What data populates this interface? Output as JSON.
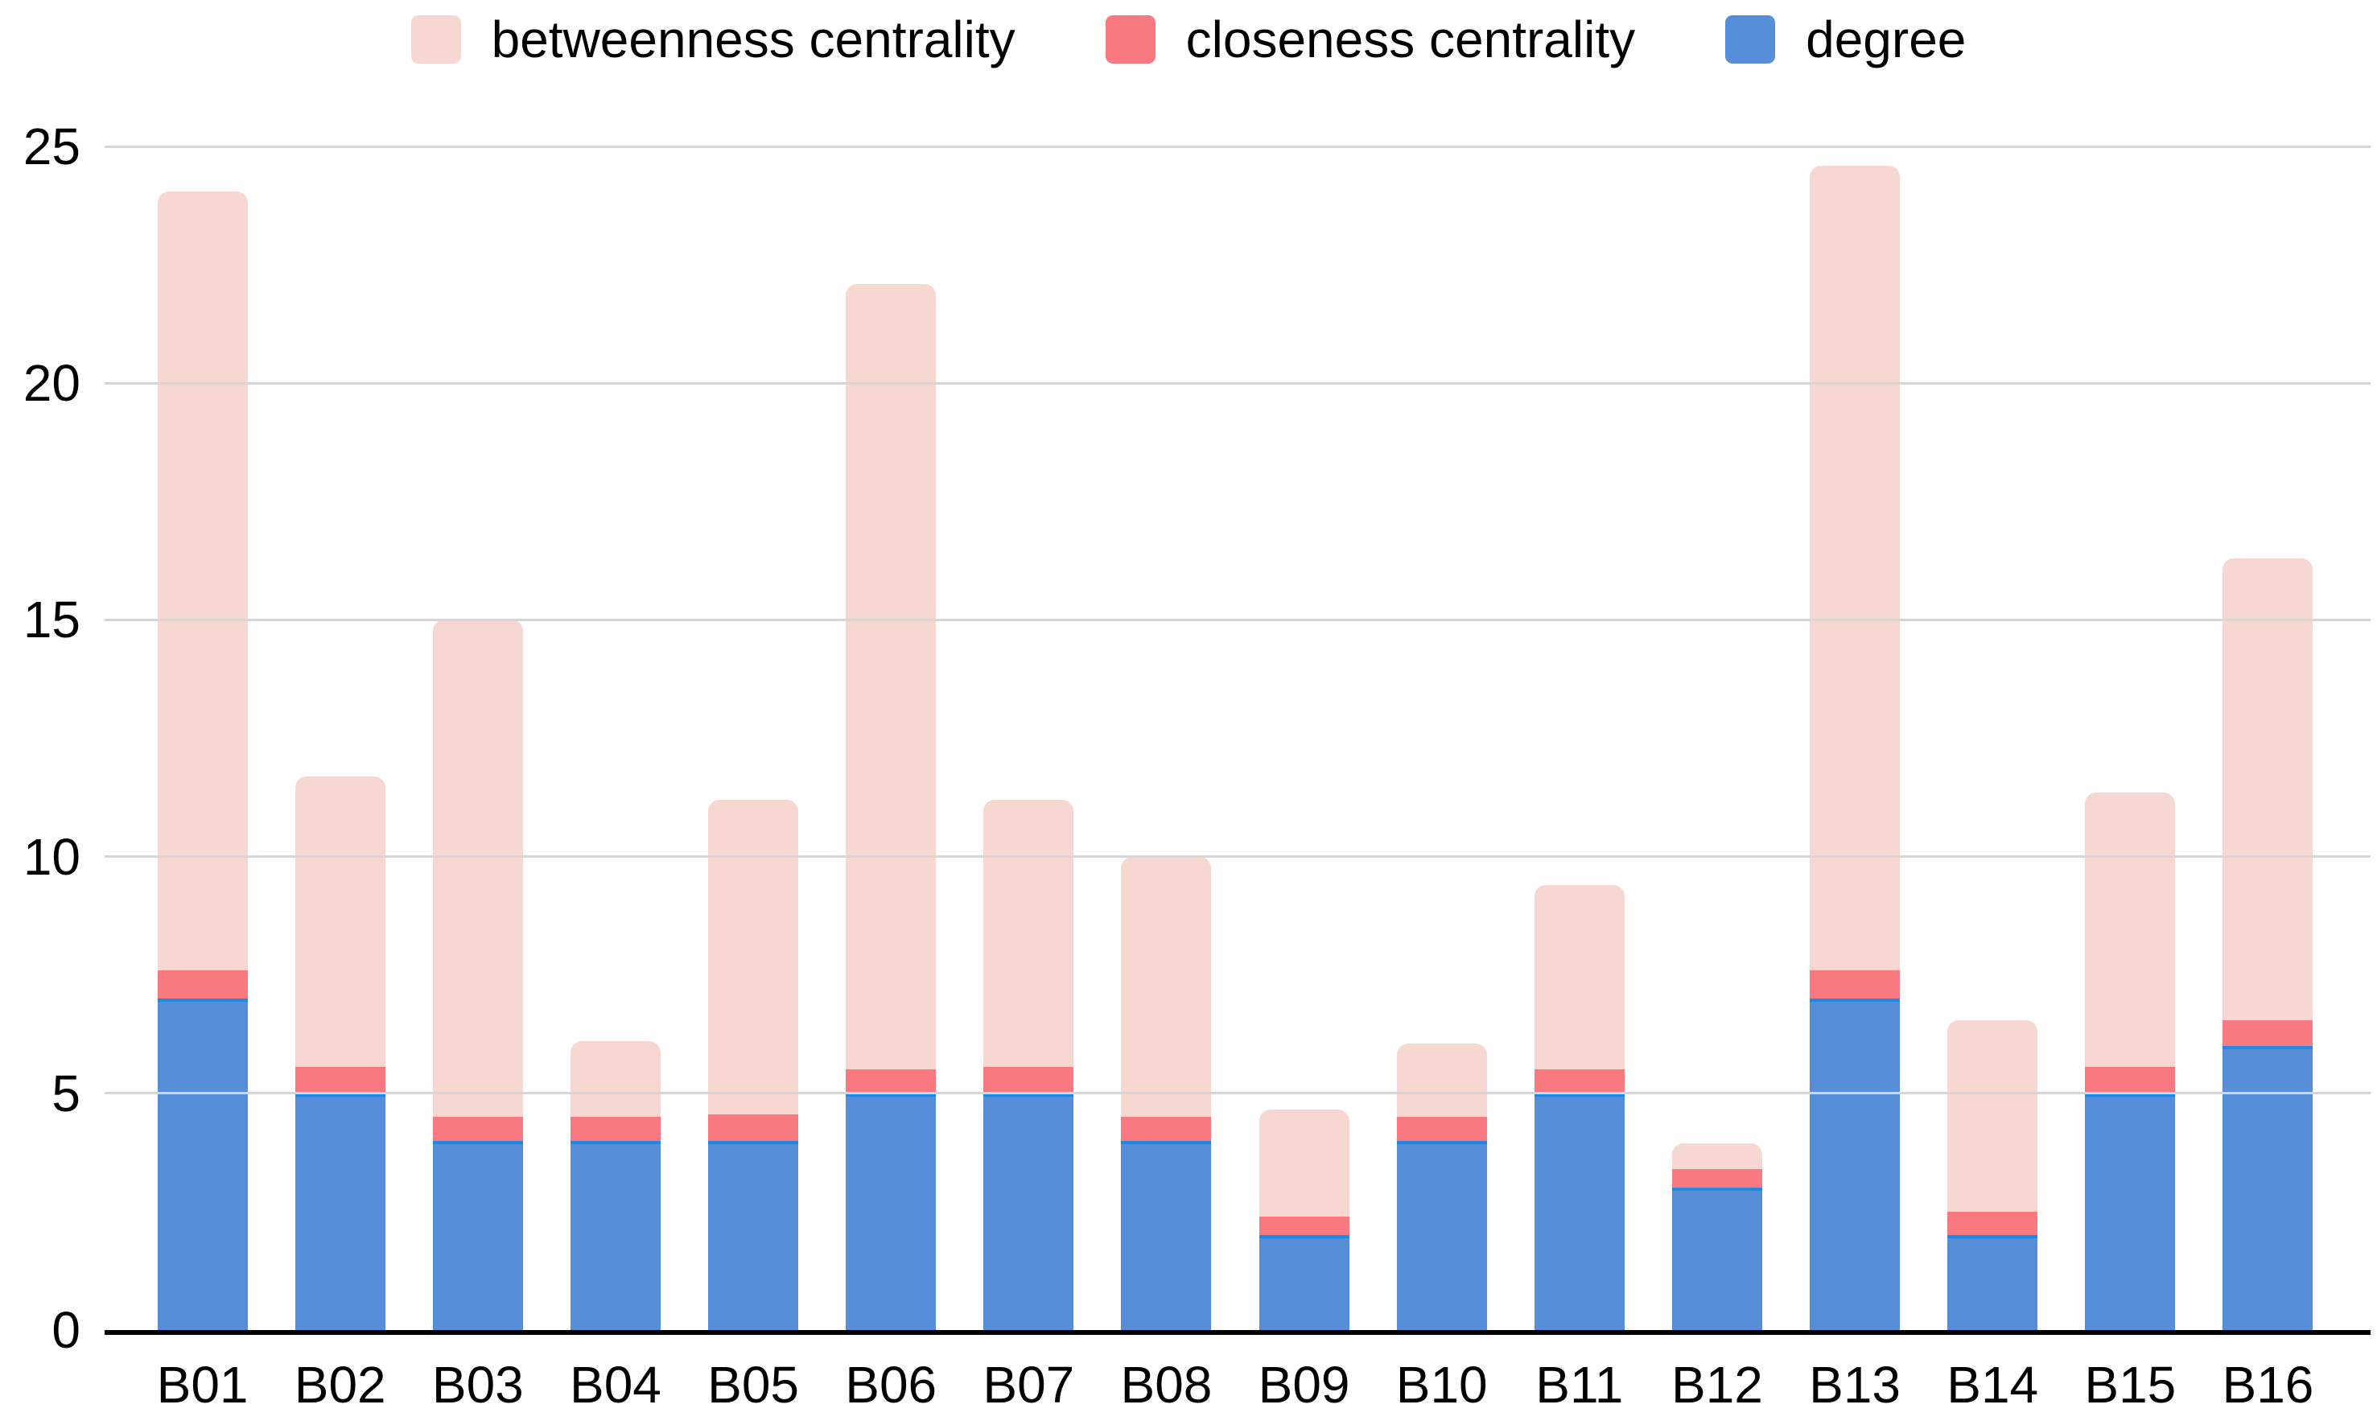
{
  "figure": {
    "background": "#ffffff",
    "text_color": "#000000",
    "gridline_color": "#d6d6d6",
    "axis_color": "#000000"
  },
  "chart_data": {
    "type": "bar",
    "stacked": true,
    "title": "",
    "xlabel": "",
    "ylabel": "",
    "categories": [
      "B01",
      "B02",
      "B03",
      "B04",
      "B05",
      "B06",
      "B07",
      "B08",
      "B09",
      "B10",
      "B11",
      "B12",
      "B13",
      "B14",
      "B15",
      "B16"
    ],
    "series": [
      {
        "name": "betweenness centrality",
        "color": "#f6d7d1",
        "values": [
          16.45,
          6.15,
          10.5,
          1.6,
          6.65,
          16.6,
          5.65,
          5.5,
          2.25,
          1.55,
          3.9,
          0.55,
          17.0,
          4.05,
          5.8,
          9.75
        ]
      },
      {
        "name": "closeness centrality",
        "color": "#f8797f",
        "values": [
          0.6,
          0.55,
          0.5,
          0.5,
          0.55,
          0.5,
          0.55,
          0.5,
          0.4,
          0.5,
          0.5,
          0.4,
          0.6,
          0.5,
          0.55,
          0.55
        ]
      },
      {
        "name": "degree",
        "color": "#568fd7",
        "values": [
          7,
          5,
          4,
          4,
          4,
          5,
          5,
          4,
          2,
          4,
          5,
          3,
          7,
          2,
          5,
          6
        ]
      }
    ],
    "stack_bottom_to_top": [
      "degree",
      "closeness centrality",
      "betweenness centrality"
    ],
    "stack_totals": [
      24.05,
      11.7,
      15.0,
      6.1,
      11.2,
      22.1,
      11.2,
      10.0,
      4.65,
      6.05,
      9.4,
      3.95,
      24.6,
      6.55,
      11.35,
      16.3
    ],
    "ylim": [
      0,
      25
    ],
    "yticks": [
      0,
      5,
      10,
      15,
      20,
      25
    ],
    "grid": true,
    "legend_position": "top"
  }
}
